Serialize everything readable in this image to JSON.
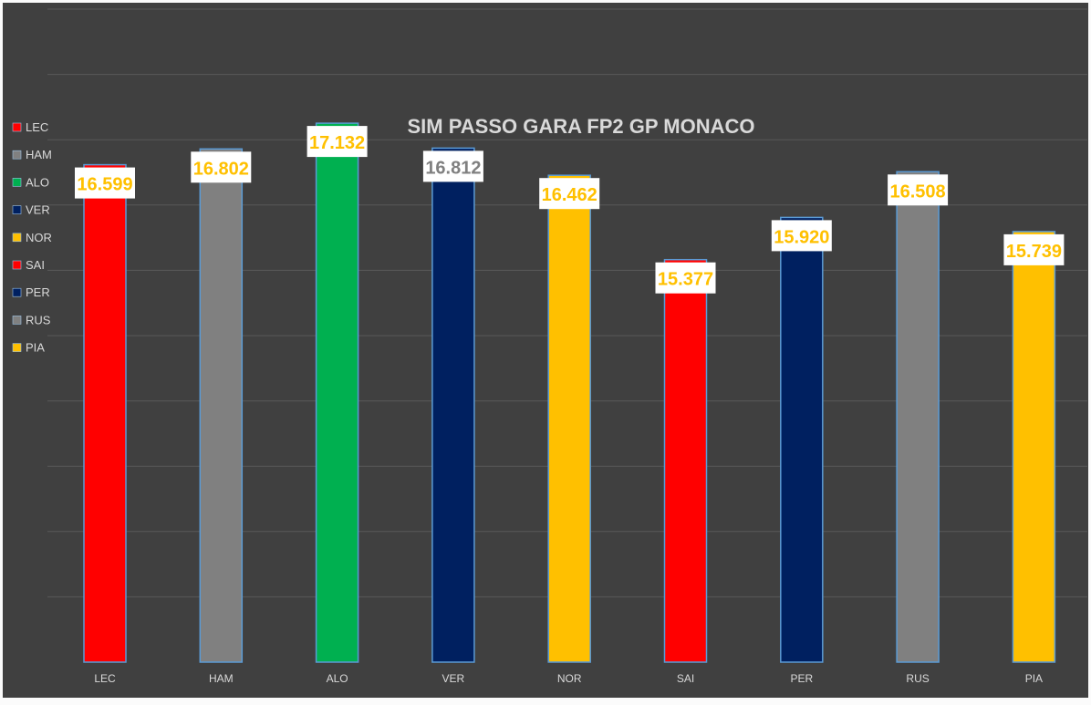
{
  "chart_data": {
    "type": "bar",
    "title": "SIM PASSO GARA FP2 GP MONACO",
    "xlabel": "",
    "ylabel": "",
    "categories": [
      "LEC",
      "HAM",
      "ALO",
      "VER",
      "NOR",
      "SAI",
      "PER",
      "RUS",
      "PIA"
    ],
    "values": [
      16.599,
      16.802,
      17.132,
      16.812,
      16.462,
      15.377,
      15.92,
      16.508,
      15.739
    ],
    "value_labels": [
      "16.599",
      "16.802",
      "17.132",
      "16.812",
      "16.462",
      "15.377",
      "15.920",
      "16.508",
      "15.739"
    ],
    "bar_colors": [
      "#ff0000",
      "#808080",
      "#00b050",
      "#002060",
      "#ffc000",
      "#ff0000",
      "#002060",
      "#808080",
      "#ffc000"
    ],
    "value_label_colors": [
      "#ffc000",
      "#ffc000",
      "#ffc000",
      "#808080",
      "#ffc000",
      "#ffc000",
      "#ffc000",
      "#ffc000",
      "#ffc000"
    ],
    "ylim": [
      10.2,
      18.6
    ],
    "grid": true,
    "legend": {
      "placement": "left",
      "entries": [
        "LEC",
        "HAM",
        "ALO",
        "VER",
        "NOR",
        "SAI",
        "PER",
        "RUS",
        "PIA"
      ],
      "colors": [
        "#ff0000",
        "#808080",
        "#00b050",
        "#002060",
        "#ffc000",
        "#ff0000",
        "#002060",
        "#808080",
        "#ffc000"
      ]
    }
  },
  "style": {
    "background": "#404040",
    "gridline": "#595959",
    "title_color": "#d9d9d9",
    "tick_color": "#d9d9d9",
    "label_box": "#ffffff",
    "bar_edge": "#5b9bd5"
  }
}
